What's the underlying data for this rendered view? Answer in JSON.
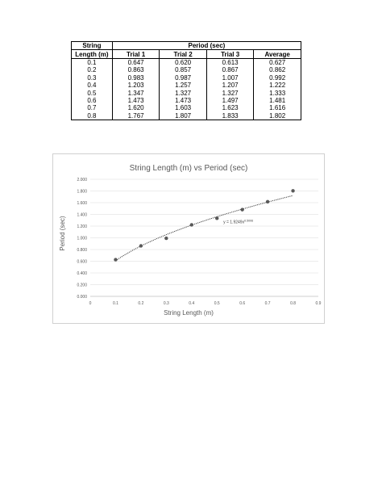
{
  "table": {
    "header_length_top": "String",
    "header_length_bottom": "Length (m)",
    "header_period": "Period (sec)",
    "header_trial1": "Trial 1",
    "header_trial2": "Trial 2",
    "header_trial3": "Trial 3",
    "header_average": "Average",
    "rows": [
      {
        "length": "0.1",
        "t1": "0.647",
        "t2": "0.620",
        "t3": "0.613",
        "avg": "0.627"
      },
      {
        "length": "0.2",
        "t1": "0.863",
        "t2": "0.857",
        "t3": "0.867",
        "avg": "0.862"
      },
      {
        "length": "0.3",
        "t1": "0.983",
        "t2": "0.987",
        "t3": "1.007",
        "avg": "0.992"
      },
      {
        "length": "0.4",
        "t1": "1.203",
        "t2": "1.257",
        "t3": "1.207",
        "avg": "1.222"
      },
      {
        "length": "0.5",
        "t1": "1.347",
        "t2": "1.327",
        "t3": "1.327",
        "avg": "1.333"
      },
      {
        "length": "0.6",
        "t1": "1.473",
        "t2": "1.473",
        "t3": "1.497",
        "avg": "1.481"
      },
      {
        "length": "0.7",
        "t1": "1.620",
        "t2": "1.603",
        "t3": "1.623",
        "avg": "1.616"
      },
      {
        "length": "0.8",
        "t1": "1.767",
        "t2": "1.807",
        "t3": "1.833",
        "avg": "1.802"
      }
    ]
  },
  "chart_data": {
    "type": "scatter",
    "title": "String Length (m) vs Period (sec)",
    "xlabel": "String Length (m)",
    "ylabel": "Period (sec)",
    "xlim": [
      0,
      0.9
    ],
    "ylim": [
      0,
      2.0
    ],
    "x_ticks": [
      0,
      0.1,
      0.2,
      0.3,
      0.4,
      0.5,
      0.6,
      0.7,
      0.8,
      0.9
    ],
    "x_tick_labels": [
      "0",
      "0.1",
      "0.2",
      "0.3",
      "0.4",
      "0.5",
      "0.6",
      "0.7",
      "0.8",
      "0.9"
    ],
    "y_ticks": [
      0,
      0.2,
      0.4,
      0.6,
      0.8,
      1.0,
      1.2,
      1.4,
      1.6,
      1.8,
      2.0
    ],
    "y_tick_labels": [
      "0.000",
      "0.200",
      "0.400",
      "0.600",
      "0.800",
      "1.000",
      "1.200",
      "1.400",
      "1.600",
      "1.800",
      "2.000"
    ],
    "grid": true,
    "legend": "none",
    "series": [
      {
        "x": [
          0.1,
          0.2,
          0.3,
          0.4,
          0.5,
          0.6,
          0.7,
          0.8
        ],
        "y": [
          0.627,
          0.862,
          0.992,
          1.222,
          1.333,
          1.481,
          1.616,
          1.802
        ]
      }
    ],
    "trendline": {
      "kind": "power",
      "coefficient": 1.9249,
      "exponent": 0.5006,
      "label": "y = 1.9249x^0.5006"
    },
    "colors": {
      "marker": "#595959",
      "trend": "#404040",
      "grid": "#d9d9d9",
      "text": "#595959"
    }
  }
}
